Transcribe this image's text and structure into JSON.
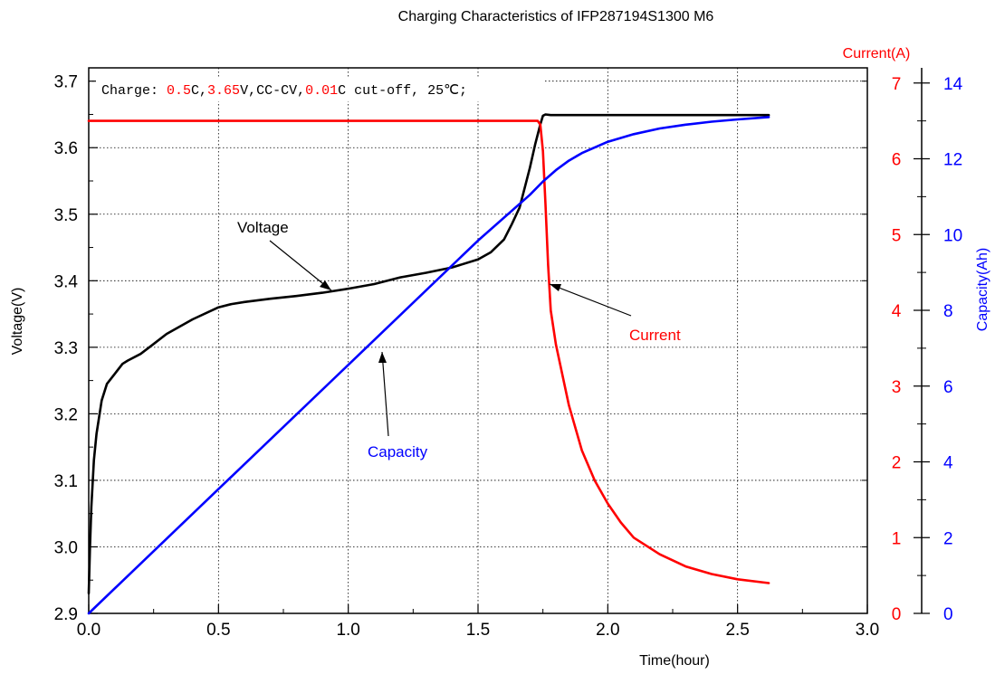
{
  "chart_data": {
    "type": "line",
    "title": "Charging Characteristics of IFP287194S1300 M6",
    "xlabel": "Time(hour)",
    "ylabel_left": "Voltage(V)",
    "ylabel_right_current": "Current(A)",
    "ylabel_right_capacity": "Capacity(Ah)",
    "xlim": [
      0,
      3
    ],
    "ylim_voltage": [
      2.9,
      3.72
    ],
    "ylim_current": [
      0,
      7.2
    ],
    "ylim_capacity": [
      0,
      14.4
    ],
    "x_ticks": [
      "0.0",
      "0.5",
      "1.0",
      "1.5",
      "2.0",
      "2.5",
      "3.0"
    ],
    "voltage_ticks": [
      "2.9",
      "3.0",
      "3.1",
      "3.2",
      "3.3",
      "3.4",
      "3.5",
      "3.6",
      "3.7"
    ],
    "current_ticks": [
      "0",
      "1",
      "2",
      "3",
      "4",
      "5",
      "6",
      "7"
    ],
    "capacity_ticks": [
      "0",
      "2",
      "4",
      "6",
      "8",
      "10",
      "12",
      "14"
    ],
    "grid": true,
    "conditions": {
      "prefix": "Charge: ",
      "c_rate": "0.5",
      "c_rate_unit": "C,",
      "voltage": "3.65",
      "voltage_unit": "V,CC-CV,",
      "cutoff": "0.01",
      "cutoff_suffix": "C cut-off, 25℃;"
    },
    "annotations": {
      "voltage": "Voltage",
      "current": "Current",
      "capacity": "Capacity"
    },
    "colors": {
      "voltage": "#000000",
      "current": "#ff0000",
      "capacity": "#0000ff"
    },
    "series": [
      {
        "name": "Voltage",
        "axis": "voltage",
        "x": [
          0,
          0.005,
          0.01,
          0.02,
          0.03,
          0.05,
          0.07,
          0.1,
          0.13,
          0.15,
          0.2,
          0.25,
          0.3,
          0.4,
          0.5,
          0.55,
          0.6,
          0.7,
          0.8,
          0.9,
          1.0,
          1.1,
          1.2,
          1.3,
          1.4,
          1.5,
          1.55,
          1.6,
          1.63,
          1.66,
          1.68,
          1.7,
          1.72,
          1.74,
          1.75,
          1.76,
          1.78,
          1.8,
          2.0,
          2.2,
          2.4,
          2.6,
          2.62
        ],
        "y": [
          2.93,
          3.0,
          3.06,
          3.13,
          3.17,
          3.22,
          3.245,
          3.26,
          3.275,
          3.28,
          3.29,
          3.305,
          3.32,
          3.342,
          3.36,
          3.365,
          3.368,
          3.373,
          3.377,
          3.382,
          3.388,
          3.395,
          3.405,
          3.412,
          3.42,
          3.432,
          3.443,
          3.462,
          3.485,
          3.51,
          3.54,
          3.57,
          3.605,
          3.635,
          3.648,
          3.65,
          3.649,
          3.649,
          3.649,
          3.649,
          3.649,
          3.649,
          3.649
        ]
      },
      {
        "name": "Current",
        "axis": "current",
        "x": [
          0,
          1.0,
          1.6,
          1.72,
          1.73,
          1.74,
          1.75,
          1.76,
          1.77,
          1.78,
          1.8,
          1.85,
          1.9,
          1.95,
          2.0,
          2.05,
          2.1,
          2.2,
          2.3,
          2.4,
          2.5,
          2.62
        ],
        "y": [
          6.5,
          6.5,
          6.5,
          6.5,
          6.5,
          6.45,
          6.1,
          5.4,
          4.6,
          4.0,
          3.55,
          2.75,
          2.15,
          1.75,
          1.45,
          1.2,
          1.0,
          0.78,
          0.62,
          0.52,
          0.45,
          0.4
        ]
      },
      {
        "name": "Capacity",
        "axis": "capacity",
        "x": [
          0,
          0.5,
          1.0,
          1.5,
          1.7,
          1.75,
          1.8,
          1.85,
          1.9,
          2.0,
          2.1,
          2.2,
          2.3,
          2.4,
          2.5,
          2.62
        ],
        "y": [
          0,
          3.28,
          6.56,
          9.84,
          11.05,
          11.4,
          11.7,
          11.95,
          12.15,
          12.45,
          12.65,
          12.8,
          12.9,
          12.98,
          13.04,
          13.1
        ]
      }
    ]
  }
}
